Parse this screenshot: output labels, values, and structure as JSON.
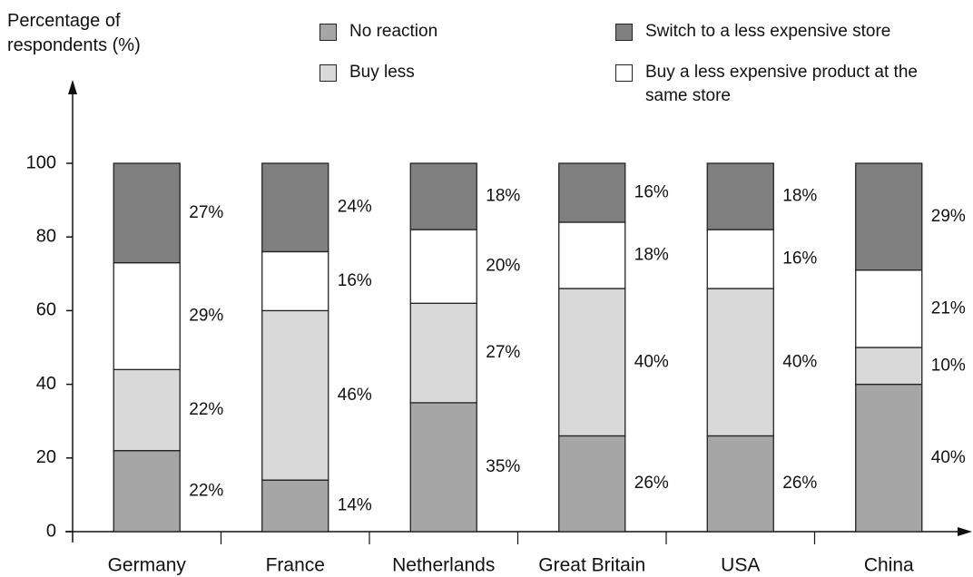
{
  "chart_data": {
    "type": "stacked_bar",
    "y_label": "Percentage of respondents (%)",
    "categories": [
      "Germany",
      "France",
      "Netherlands",
      "Great Britain",
      "USA",
      "China"
    ],
    "series": [
      {
        "name": "No reaction",
        "color": "#a6a6a6",
        "values": [
          22,
          14,
          35,
          26,
          26,
          40
        ],
        "value_labels": [
          "22%",
          "14%",
          "35%",
          "26%",
          "26%",
          "40%"
        ]
      },
      {
        "name": "Buy less",
        "color": "#d9d9d9",
        "values": [
          22,
          46,
          27,
          40,
          40,
          10
        ],
        "value_labels": [
          "22%",
          "46%",
          "27%",
          "40%",
          "40%",
          "10%"
        ]
      },
      {
        "name": "Buy a less expensive product at the same store",
        "color": "#ffffff",
        "values": [
          29,
          16,
          20,
          18,
          16,
          21
        ],
        "value_labels": [
          "29%",
          "16%",
          "20%",
          "18%",
          "16%",
          "21%"
        ]
      },
      {
        "name": "Switch to a less expensive store",
        "color": "#808080",
        "values": [
          27,
          24,
          18,
          16,
          18,
          29
        ],
        "value_labels": [
          "27%",
          "24%",
          "18%",
          "16%",
          "18%",
          "29%"
        ]
      }
    ],
    "ylim": [
      0,
      100
    ],
    "yticks": [
      0,
      20,
      40,
      60,
      80,
      100
    ]
  }
}
